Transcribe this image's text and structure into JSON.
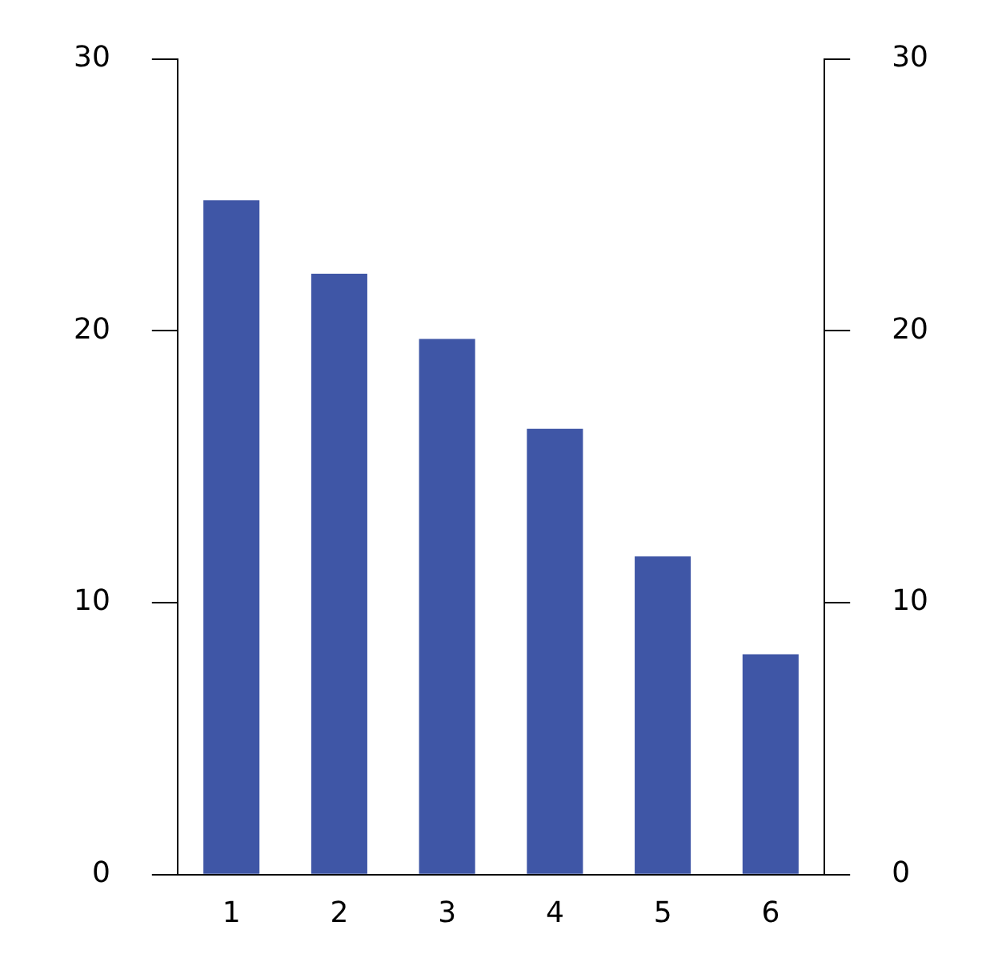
{
  "chart_data": {
    "type": "bar",
    "categories": [
      "1",
      "2",
      "3",
      "4",
      "5",
      "6"
    ],
    "values": [
      24.8,
      22.1,
      19.7,
      16.4,
      11.7,
      8.1
    ],
    "color": "#3f56a6",
    "ylim": [
      0,
      30
    ],
    "yticks": [
      0,
      10,
      20,
      30
    ],
    "y2lim": [
      0,
      30
    ],
    "y2ticks": [
      0,
      10,
      20,
      30
    ],
    "grid": false
  }
}
